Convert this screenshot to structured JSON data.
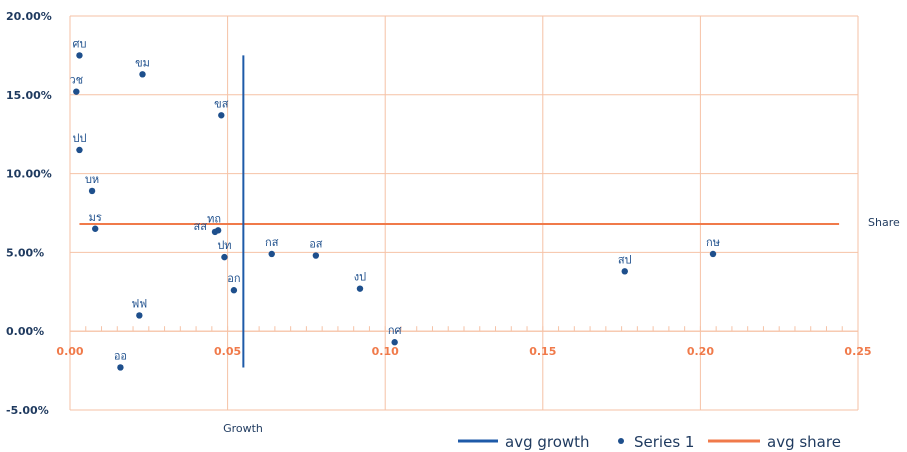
{
  "chart_data": {
    "type": "scatter",
    "xlabel": "Growth",
    "ylabel": "Share",
    "xlim": [
      0,
      0.25
    ],
    "ylim": [
      -0.05,
      0.2
    ],
    "x_ticks": [
      "0.00",
      "0.05",
      "0.10",
      "0.15",
      "0.20",
      "0.25"
    ],
    "y_ticks": [
      "20.00%",
      "15.00%",
      "10.00%",
      "5.00%",
      "0.00%",
      "-5.00%"
    ],
    "grid": true,
    "legend_position": "bottom-right",
    "colors": {
      "points": "#1e4f8c",
      "avg_growth": "#1e5aa8",
      "avg_share": "#f07a4a",
      "grid": "#f6c2a6",
      "x_tick_text": "#f07a4a",
      "y_tick_text": "#1f3a5f"
    },
    "series": [
      {
        "name": "Series 1",
        "points": [
          {
            "label": "ศบ",
            "x": 0.003,
            "y": 0.175
          },
          {
            "label": "ขม",
            "x": 0.023,
            "y": 0.163
          },
          {
            "label": "วช",
            "x": 0.002,
            "y": 0.152
          },
          {
            "label": "ขส",
            "x": 0.048,
            "y": 0.137
          },
          {
            "label": "ปป",
            "x": 0.003,
            "y": 0.115
          },
          {
            "label": "บห",
            "x": 0.007,
            "y": 0.089
          },
          {
            "label": "มร",
            "x": 0.008,
            "y": 0.065
          },
          {
            "label": "ทถ",
            "x": 0.047,
            "y": 0.064
          },
          {
            "label": "สส",
            "x": 0.046,
            "y": 0.063
          },
          {
            "label": "กส",
            "x": 0.064,
            "y": 0.049
          },
          {
            "label": "อส",
            "x": 0.078,
            "y": 0.048
          },
          {
            "label": "ปท",
            "x": 0.049,
            "y": 0.047
          },
          {
            "label": "กษ",
            "x": 0.204,
            "y": 0.049
          },
          {
            "label": "สป",
            "x": 0.176,
            "y": 0.038
          },
          {
            "label": "งป",
            "x": 0.092,
            "y": 0.027
          },
          {
            "label": "อก",
            "x": 0.052,
            "y": 0.026
          },
          {
            "label": "ฟฟ",
            "x": 0.022,
            "y": 0.01
          },
          {
            "label": "กศ",
            "x": 0.103,
            "y": -0.007
          },
          {
            "label": "ออ",
            "x": 0.016,
            "y": -0.023
          }
        ]
      }
    ],
    "avg_growth": {
      "name": "avg growth",
      "x": 0.055,
      "y_range": [
        -0.023,
        0.175
      ]
    },
    "avg_share": {
      "name": "avg share",
      "y": 0.068,
      "x_range": [
        0.003,
        0.244
      ]
    },
    "legend": [
      "avg growth",
      "Series 1",
      "avg share"
    ]
  }
}
